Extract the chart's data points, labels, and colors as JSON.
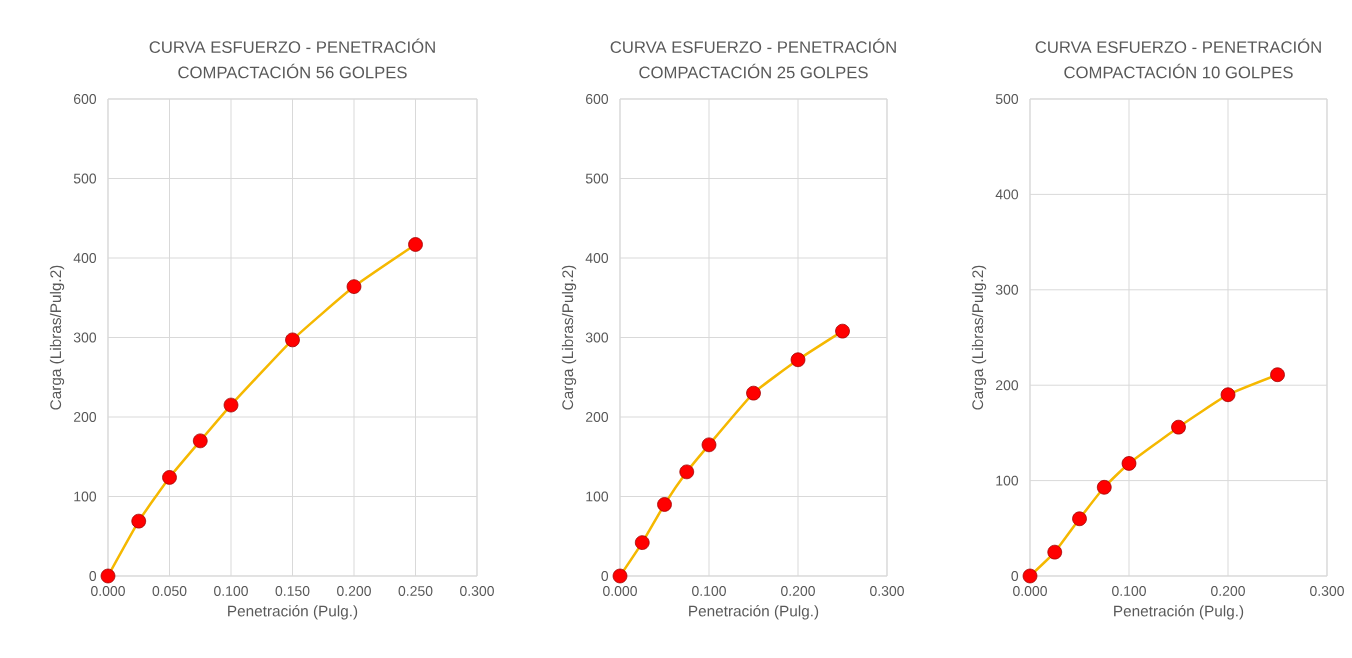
{
  "chart_data": [
    {
      "type": "line",
      "title": "CURVA ESFUERZO - PENETRACIÓN",
      "subtitle": "COMPACTACIÓN 56 GOLPES",
      "xlabel": "Penetración (Pulg.)",
      "ylabel": "Carga (Libras/Pulg.2)",
      "x": [
        0,
        0.025,
        0.05,
        0.075,
        0.1,
        0.15,
        0.2,
        0.25
      ],
      "series": [
        {
          "color": "#f5b800",
          "colors": [
            "#ff0000",
            "#ff0000",
            "#ff0000",
            "#ff0000",
            "#ff0000",
            "#ff0000",
            "#ff0000",
            "#ff0000"
          ],
          "values": [
            0,
            69,
            124,
            170,
            215,
            297,
            364,
            417
          ]
        }
      ],
      "xlim": [
        0,
        0.3
      ],
      "xticks": [
        {
          "value": 0,
          "label": "0.000"
        },
        {
          "value": 0.05,
          "label": "0.050"
        },
        {
          "value": 0.1,
          "label": "0.100"
        },
        {
          "value": 0.15,
          "label": "0.150"
        },
        {
          "value": 0.2,
          "label": "0.200"
        },
        {
          "value": 0.25,
          "label": "0.250"
        },
        {
          "value": 0.3,
          "label": "0.300"
        }
      ],
      "ylim": [
        0,
        600
      ],
      "yticks": [
        0,
        100,
        200,
        300,
        400,
        500,
        600
      ],
      "grid": true,
      "marker": "circle",
      "line_style": "solid"
    },
    {
      "type": "line",
      "title": "CURVA ESFUERZO - PENETRACIÓN",
      "subtitle": "COMPACTACIÓN 25 GOLPES",
      "xlabel": "Penetración (Pulg.)",
      "ylabel": "Carga (Libras/Pulg.2)",
      "x": [
        0,
        0.025,
        0.05,
        0.075,
        0.1,
        0.15,
        0.2,
        0.25
      ],
      "series": [
        {
          "color": "#f5b800",
          "colors": [
            "#ff0000",
            "#ff0000",
            "#ff0000",
            "#ff0000",
            "#ff0000",
            "#ff0000",
            "#ff0000",
            "#ff0000"
          ],
          "values": [
            0,
            42,
            90,
            131,
            165,
            230,
            272,
            308
          ]
        }
      ],
      "xlim": [
        0,
        0.3
      ],
      "xticks": [
        {
          "value": 0,
          "label": "0.000"
        },
        {
          "value": 0.1,
          "label": "0.100"
        },
        {
          "value": 0.2,
          "label": "0.200"
        },
        {
          "value": 0.3,
          "label": "0.300"
        }
      ],
      "ylim": [
        0,
        600
      ],
      "yticks": [
        0,
        100,
        200,
        300,
        400,
        500,
        600
      ],
      "grid": true,
      "marker": "circle",
      "line_style": "solid"
    },
    {
      "type": "line",
      "title": "CURVA ESFUERZO - PENETRACIÓN",
      "subtitle": "COMPACTACIÓN 10 GOLPES",
      "xlabel": "Penetración (Pulg.)",
      "ylabel": "Carga (Libras/Pulg.2)",
      "x": [
        0,
        0.025,
        0.05,
        0.075,
        0.1,
        0.15,
        0.2,
        0.25
      ],
      "series": [
        {
          "color": "#f5b800",
          "colors": [
            "#ff0000",
            "#ff0000",
            "#ff0000",
            "#ff0000",
            "#ff0000",
            "#ff0000",
            "#ff0000",
            "#ff0000"
          ],
          "values": [
            0,
            25,
            60,
            93,
            118,
            156,
            190,
            211
          ]
        }
      ],
      "xlim": [
        0,
        0.3
      ],
      "xticks": [
        {
          "value": 0,
          "label": "0.000"
        },
        {
          "value": 0.1,
          "label": "0.100"
        },
        {
          "value": 0.2,
          "label": "0.200"
        },
        {
          "value": 0.3,
          "label": "0.300"
        }
      ],
      "ylim": [
        0,
        500
      ],
      "yticks": [
        0,
        100,
        200,
        300,
        400,
        500
      ],
      "grid": true,
      "marker": "circle",
      "line_style": "solid"
    }
  ]
}
